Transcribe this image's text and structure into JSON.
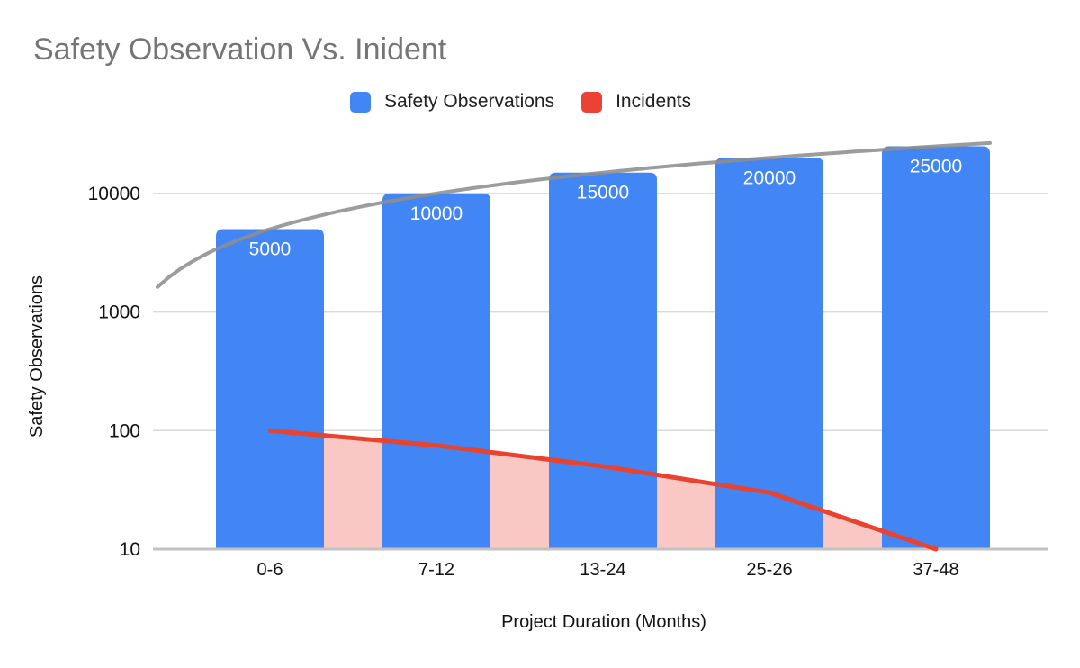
{
  "title": "Safety Observation Vs. Inident",
  "legend": {
    "position": "top",
    "items": [
      {
        "label": "Safety Observations",
        "color": "#4285F4"
      },
      {
        "label": "Incidents",
        "color": "#EA4335"
      }
    ]
  },
  "chart_data": {
    "type": "bar",
    "subtype": "combo: bars + incident line with area fill + power trendline",
    "title": "Safety Observation Vs. Inident",
    "categories": [
      "0-6",
      "7-12",
      "13-24",
      "25-26",
      "37-48"
    ],
    "series": [
      {
        "name": "Safety Observations",
        "type": "bar",
        "color": "#4285F4",
        "label_color": "#ffffff",
        "values": [
          5000,
          10000,
          15000,
          20000,
          25000
        ],
        "data_labels_shown": true
      },
      {
        "name": "Incidents",
        "type": "line",
        "color": "#E8432F",
        "area_fill": "#F9C8C4",
        "values": [
          100,
          75,
          50,
          30,
          10
        ]
      }
    ],
    "trendline": {
      "series": "Safety Observations",
      "fit": "power",
      "color": "#8E8E8E"
    },
    "xlabel": "Project Duration (Months)",
    "ylabel": "Safety Observations",
    "yaxis": {
      "scale": "log",
      "min": 10,
      "ticks": [
        10,
        100,
        1000,
        10000
      ],
      "tick_labels": [
        "10",
        "100",
        "1000",
        "10000"
      ]
    },
    "grid": true,
    "gridline_color": "#dadada",
    "axisline_color": "#c2c2c2",
    "tick_label_color": "#111111",
    "legend_position": "top"
  }
}
